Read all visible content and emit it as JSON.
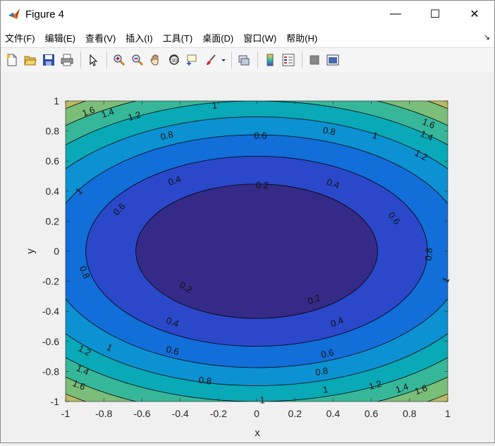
{
  "window": {
    "title": "Figure 4",
    "minimize_glyph": "—",
    "maximize_glyph": "☐",
    "close_glyph": "✕"
  },
  "menu": {
    "items": [
      "文件(F)",
      "编辑(E)",
      "查看(V)",
      "插入(I)",
      "工具(T)",
      "桌面(D)",
      "窗口(W)",
      "帮助(H)"
    ],
    "overflow_glyph": "↘"
  },
  "toolbar": {
    "icons": [
      "new-figure-icon",
      "open-file-icon",
      "save-icon",
      "print-icon",
      "edit-plot-arrow-icon",
      "zoom-in-icon",
      "zoom-out-icon",
      "pan-hand-icon",
      "rotate-3d-icon",
      "data-cursor-icon",
      "brush-icon",
      "link-plot-icon",
      "colorbar-icon",
      "legend-icon",
      "hide-plot-tools-icon",
      "show-plot-tools-icon"
    ]
  },
  "chart_data": {
    "type": "contour-filled",
    "function": "z = x^2/2 + y^2",
    "xlabel": "x",
    "ylabel": "y",
    "xlim": [
      -1,
      1
    ],
    "ylim": [
      -1,
      1
    ],
    "xticks": [
      "-1",
      "-0.8",
      "-0.6",
      "-0.4",
      "-0.2",
      "0",
      "0.2",
      "0.4",
      "0.6",
      "0.8",
      "1"
    ],
    "yticks": [
      "1",
      "0.8",
      "0.6",
      "0.4",
      "0.2",
      "0",
      "-0.2",
      "-0.4",
      "-0.6",
      "-0.8",
      "-1"
    ],
    "levels": [
      0.2,
      0.4,
      0.6,
      0.8,
      1.0,
      1.2,
      1.4,
      1.6
    ],
    "fill_colors": [
      "#352a87",
      "#2a48c9",
      "#126ed8",
      "#0c92d2",
      "#09a9b7",
      "#37b79a",
      "#7abe79",
      "#b8bb62",
      "#f5c43a"
    ],
    "contour_labels": [
      {
        "text": "0.2",
        "x": 0.03,
        "y": 0.44
      },
      {
        "text": "0.2",
        "x": -0.37,
        "y": -0.24
      },
      {
        "text": "0.2",
        "x": 0.3,
        "y": -0.32
      },
      {
        "text": "0.4",
        "x": -0.43,
        "y": 0.47
      },
      {
        "text": "0.4",
        "x": 0.4,
        "y": 0.45
      },
      {
        "text": "0.4",
        "x": -0.44,
        "y": -0.47
      },
      {
        "text": "0.4",
        "x": 0.42,
        "y": -0.47
      },
      {
        "text": "0.6",
        "x": 0.02,
        "y": 0.77
      },
      {
        "text": "0.6",
        "x": -0.72,
        "y": 0.28
      },
      {
        "text": "0.6",
        "x": 0.72,
        "y": 0.22
      },
      {
        "text": "0.6",
        "x": -0.44,
        "y": -0.66
      },
      {
        "text": "0.6",
        "x": 0.37,
        "y": -0.68
      },
      {
        "text": "0.8",
        "x": -0.47,
        "y": 0.77
      },
      {
        "text": "0.8",
        "x": 0.38,
        "y": 0.8
      },
      {
        "text": "0.8",
        "x": -0.9,
        "y": -0.14
      },
      {
        "text": "0.8",
        "x": 0.9,
        "y": -0.02
      },
      {
        "text": "0.8",
        "x": 0.34,
        "y": -0.8
      },
      {
        "text": "0.8",
        "x": -0.27,
        "y": -0.86
      },
      {
        "text": "1",
        "x": -0.22,
        "y": 0.97
      },
      {
        "text": "1",
        "x": 0.62,
        "y": 0.77
      },
      {
        "text": "1",
        "x": -0.93,
        "y": 0.4
      },
      {
        "text": "1",
        "x": 0.99,
        "y": -0.19
      },
      {
        "text": "1",
        "x": -0.77,
        "y": -0.64
      },
      {
        "text": "1",
        "x": 0.36,
        "y": -0.92
      },
      {
        "text": "1",
        "x": 0.03,
        "y": -0.99
      },
      {
        "text": "1.2",
        "x": -0.64,
        "y": 0.9
      },
      {
        "text": "1.2",
        "x": 0.86,
        "y": 0.64
      },
      {
        "text": "1.2",
        "x": -0.9,
        "y": -0.66
      },
      {
        "text": "1.2",
        "x": 0.62,
        "y": -0.89
      },
      {
        "text": "1.4",
        "x": -0.78,
        "y": 0.92
      },
      {
        "text": "1.4",
        "x": 0.89,
        "y": 0.77
      },
      {
        "text": "1.4",
        "x": -0.91,
        "y": -0.79
      },
      {
        "text": "1.4",
        "x": 0.76,
        "y": -0.91
      },
      {
        "text": "1.6",
        "x": -0.88,
        "y": 0.93
      },
      {
        "text": "1.6",
        "x": 0.9,
        "y": 0.85
      },
      {
        "text": "1.6",
        "x": -0.93,
        "y": -0.89
      },
      {
        "text": "1.6",
        "x": 0.86,
        "y": -0.92
      }
    ]
  }
}
